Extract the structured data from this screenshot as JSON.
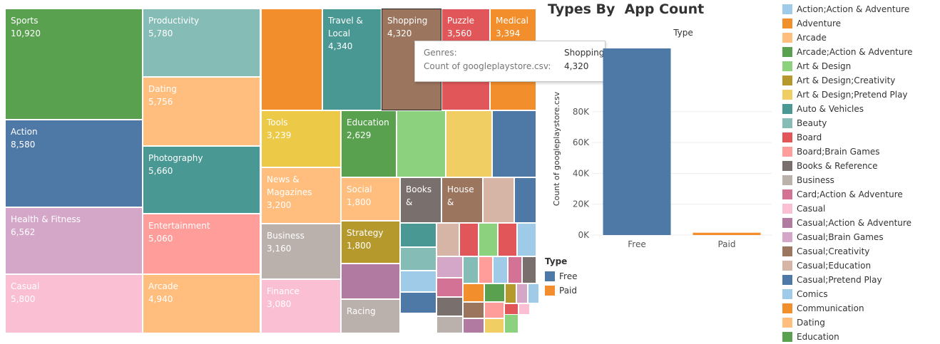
{
  "treemap": {
    "tiles": [
      {
        "name": "Sports",
        "value": "10,920",
        "color": "#59A14F",
        "selected": false
      },
      {
        "name": "Action",
        "value": "8,580",
        "color": "#4E79A7",
        "selected": false
      },
      {
        "name": "Health & Fitness",
        "value": "6,562",
        "color": "#D4A6C8",
        "selected": false
      },
      {
        "name": "Casual",
        "value": "5,800",
        "color": "#FABFD2",
        "selected": false
      },
      {
        "name": "Productivity",
        "value": "5,780",
        "color": "#86BCB6",
        "selected": false
      },
      {
        "name": "Dating",
        "value": "5,756",
        "color": "#FFBE7D",
        "selected": false
      },
      {
        "name": "Photography",
        "value": "5,660",
        "color": "#499894",
        "selected": false
      },
      {
        "name": "Entertainment",
        "value": "5,060",
        "color": "#FF9D9A",
        "selected": false
      },
      {
        "name": "Arcade",
        "value": "4,940",
        "color": "#FFBE7D",
        "selected": false
      },
      {
        "name": "",
        "value": "",
        "color": "#F28E2B",
        "selected": false
      },
      {
        "name": "Travel & Local",
        "value": "4,340",
        "color": "#499894",
        "selected": false
      },
      {
        "name": "Shopping",
        "value": "4,320",
        "color": "#9C755F",
        "selected": true
      },
      {
        "name": "Puzzle",
        "value": "3,560",
        "color": "#E15759",
        "selected": false
      },
      {
        "name": "Medical",
        "value": "3,394",
        "color": "#F28E2B",
        "selected": false
      },
      {
        "name": "Tools",
        "value": "3,239",
        "color": "#EDC948",
        "selected": false
      },
      {
        "name": "News & Magazines",
        "value": "3,200",
        "color": "#FFBE7D",
        "selected": false
      },
      {
        "name": "Business",
        "value": "3,160",
        "color": "#BAB0AC",
        "selected": false
      },
      {
        "name": "Finance",
        "value": "3,080",
        "color": "#FABFD2",
        "selected": false
      },
      {
        "name": "Education",
        "value": "2,629",
        "color": "#59A14F",
        "selected": false
      },
      {
        "name": "",
        "value": "",
        "color": "#8CD17D",
        "selected": false
      },
      {
        "name": "",
        "value": "",
        "color": "#F1CE63",
        "selected": false
      },
      {
        "name": "",
        "value": "",
        "color": "#4E79A7",
        "selected": false
      },
      {
        "name": "Social",
        "value": "1,800",
        "color": "#FFBE7D",
        "selected": false
      },
      {
        "name": "Books &",
        "value": "",
        "color": "#79706E",
        "selected": false
      },
      {
        "name": "House &",
        "value": "",
        "color": "#9C755F",
        "selected": false
      },
      {
        "name": "",
        "value": "",
        "color": "#D7B5A6",
        "selected": false
      },
      {
        "name": "",
        "value": "",
        "color": "#4E79A7",
        "selected": false
      },
      {
        "name": "Strategy",
        "value": "1,800",
        "color": "#B6992D",
        "selected": false
      },
      {
        "name": "",
        "value": "",
        "color": "#B07AA1",
        "selected": false
      },
      {
        "name": "Racing",
        "value": "",
        "color": "#BAB0AC",
        "selected": false
      },
      {
        "name": "",
        "value": "",
        "color": "#499894",
        "selected": false
      },
      {
        "name": "",
        "value": "",
        "color": "#D7B5A6",
        "selected": false
      },
      {
        "name": "",
        "value": "",
        "color": "#E15759",
        "selected": false
      },
      {
        "name": "",
        "value": "",
        "color": "#8CD17D",
        "selected": false
      },
      {
        "name": "",
        "value": "",
        "color": "#E15759",
        "selected": false
      },
      {
        "name": "",
        "value": "",
        "color": "#A0CBE8",
        "selected": false
      },
      {
        "name": "",
        "value": "",
        "color": "#86BCB6",
        "selected": false
      },
      {
        "name": "",
        "value": "",
        "color": "#D4A6C8",
        "selected": false
      },
      {
        "name": "",
        "value": "",
        "color": "#86BCB6",
        "selected": false
      },
      {
        "name": "",
        "value": "",
        "color": "#FF9D9A",
        "selected": false
      },
      {
        "name": "",
        "value": "",
        "color": "#A0CBE8",
        "selected": false
      },
      {
        "name": "",
        "value": "",
        "color": "#D37295",
        "selected": false
      },
      {
        "name": "",
        "value": "",
        "color": "#79706E",
        "selected": false
      },
      {
        "name": "",
        "value": "",
        "color": "#A0CBE8",
        "selected": false
      },
      {
        "name": "",
        "value": "",
        "color": "#D37295",
        "selected": false
      },
      {
        "name": "",
        "value": "",
        "color": "#F28E2B",
        "selected": false
      },
      {
        "name": "",
        "value": "",
        "color": "#59A14F",
        "selected": false
      },
      {
        "name": "",
        "value": "",
        "color": "#B6992D",
        "selected": false
      },
      {
        "name": "",
        "value": "",
        "color": "#D4A6C8",
        "selected": false
      },
      {
        "name": "",
        "value": "",
        "color": "#A0CBE8",
        "selected": false
      },
      {
        "name": "",
        "value": "",
        "color": "#4E79A7",
        "selected": false
      },
      {
        "name": "",
        "value": "",
        "color": "#79706E",
        "selected": false
      },
      {
        "name": "",
        "value": "",
        "color": "#9C755F",
        "selected": false
      },
      {
        "name": "",
        "value": "",
        "color": "#FF9D9A",
        "selected": false
      },
      {
        "name": "",
        "value": "",
        "color": "#E15759",
        "selected": false
      },
      {
        "name": "",
        "value": "",
        "color": "#FABFD2",
        "selected": false
      },
      {
        "name": "",
        "value": "",
        "color": "#BAB0AC",
        "selected": false
      },
      {
        "name": "",
        "value": "",
        "color": "#B07AA1",
        "selected": false
      },
      {
        "name": "",
        "value": "",
        "color": "#F1CE63",
        "selected": false
      },
      {
        "name": "",
        "value": "",
        "color": "#8CD17D",
        "selected": false
      }
    ]
  },
  "tooltip": {
    "rows": [
      {
        "key": "Genres:",
        "value": "Shopping"
      },
      {
        "key": "Count of googleplaystore.csv:",
        "value": "4,320"
      }
    ]
  },
  "bar": {
    "title": "Types By  App Count",
    "column_header": "Type",
    "ylabel": "Count of googleplaystore.csv",
    "categories": [
      "Free",
      "Paid"
    ],
    "tick_values": [
      0,
      20000,
      40000,
      60000,
      80000
    ],
    "tick_labels": [
      "0K",
      "20K",
      "40K",
      "60K",
      "80K"
    ],
    "colors": [
      "#4E79A7",
      "#F28E2B"
    ]
  },
  "chart_data": [
    {
      "type": "bar",
      "title": "Types By  App Count",
      "categories": [
        "Free",
        "Paid"
      ],
      "values": [
        121000,
        1500
      ],
      "ylabel": "Count of googleplaystore.csv",
      "xlabel": "",
      "ylim": [
        0,
        121000
      ],
      "colors": [
        "#4E79A7",
        "#F28E2B"
      ]
    },
    {
      "type": "treemap",
      "categories": [
        "Sports",
        "Action",
        "Health & Fitness",
        "Casual",
        "Productivity",
        "Dating",
        "Photography",
        "Entertainment",
        "Arcade",
        "Travel & Local",
        "Shopping",
        "Puzzle",
        "Medical",
        "Tools",
        "News & Magazines",
        "Business",
        "Finance",
        "Education",
        "Social",
        "Strategy"
      ],
      "values": [
        10920,
        8580,
        6562,
        5800,
        5780,
        5756,
        5660,
        5060,
        4940,
        4340,
        4320,
        3560,
        3394,
        3239,
        3200,
        3160,
        3080,
        2629,
        1800,
        1800
      ]
    }
  ],
  "type_legend": {
    "title": "Type",
    "items": [
      {
        "label": "Free",
        "color": "#4E79A7"
      },
      {
        "label": "Paid",
        "color": "#F28E2B"
      }
    ]
  },
  "genre_legend": {
    "items": [
      {
        "label": "Action;Action & Adventure",
        "color": "#A0CBE8"
      },
      {
        "label": "Adventure",
        "color": "#F28E2B"
      },
      {
        "label": "Arcade",
        "color": "#FFBE7D"
      },
      {
        "label": "Arcade;Action & Adventure",
        "color": "#59A14F"
      },
      {
        "label": "Art & Design",
        "color": "#8CD17D"
      },
      {
        "label": "Art & Design;Creativity",
        "color": "#B6992D"
      },
      {
        "label": "Art & Design;Pretend Play",
        "color": "#F1CE63"
      },
      {
        "label": "Auto & Vehicles",
        "color": "#499894"
      },
      {
        "label": "Beauty",
        "color": "#86BCB6"
      },
      {
        "label": "Board",
        "color": "#E15759"
      },
      {
        "label": "Board;Brain Games",
        "color": "#FF9D9A"
      },
      {
        "label": "Books & Reference",
        "color": "#79706E"
      },
      {
        "label": "Business",
        "color": "#BAB0AC"
      },
      {
        "label": "Card;Action & Adventure",
        "color": "#D37295"
      },
      {
        "label": "Casual",
        "color": "#FABFD2"
      },
      {
        "label": "Casual;Action & Adventure",
        "color": "#B07AA1"
      },
      {
        "label": "Casual;Brain Games",
        "color": "#D4A6C8"
      },
      {
        "label": "Casual;Creativity",
        "color": "#9D7660"
      },
      {
        "label": "Casual;Education",
        "color": "#D7B5A6"
      },
      {
        "label": "Casual;Pretend Play",
        "color": "#4E79A7"
      },
      {
        "label": "Comics",
        "color": "#A0CBE8"
      },
      {
        "label": "Communication",
        "color": "#F28E2B"
      },
      {
        "label": "Dating",
        "color": "#FFBE7D"
      },
      {
        "label": "Education",
        "color": "#59A14F"
      }
    ]
  }
}
